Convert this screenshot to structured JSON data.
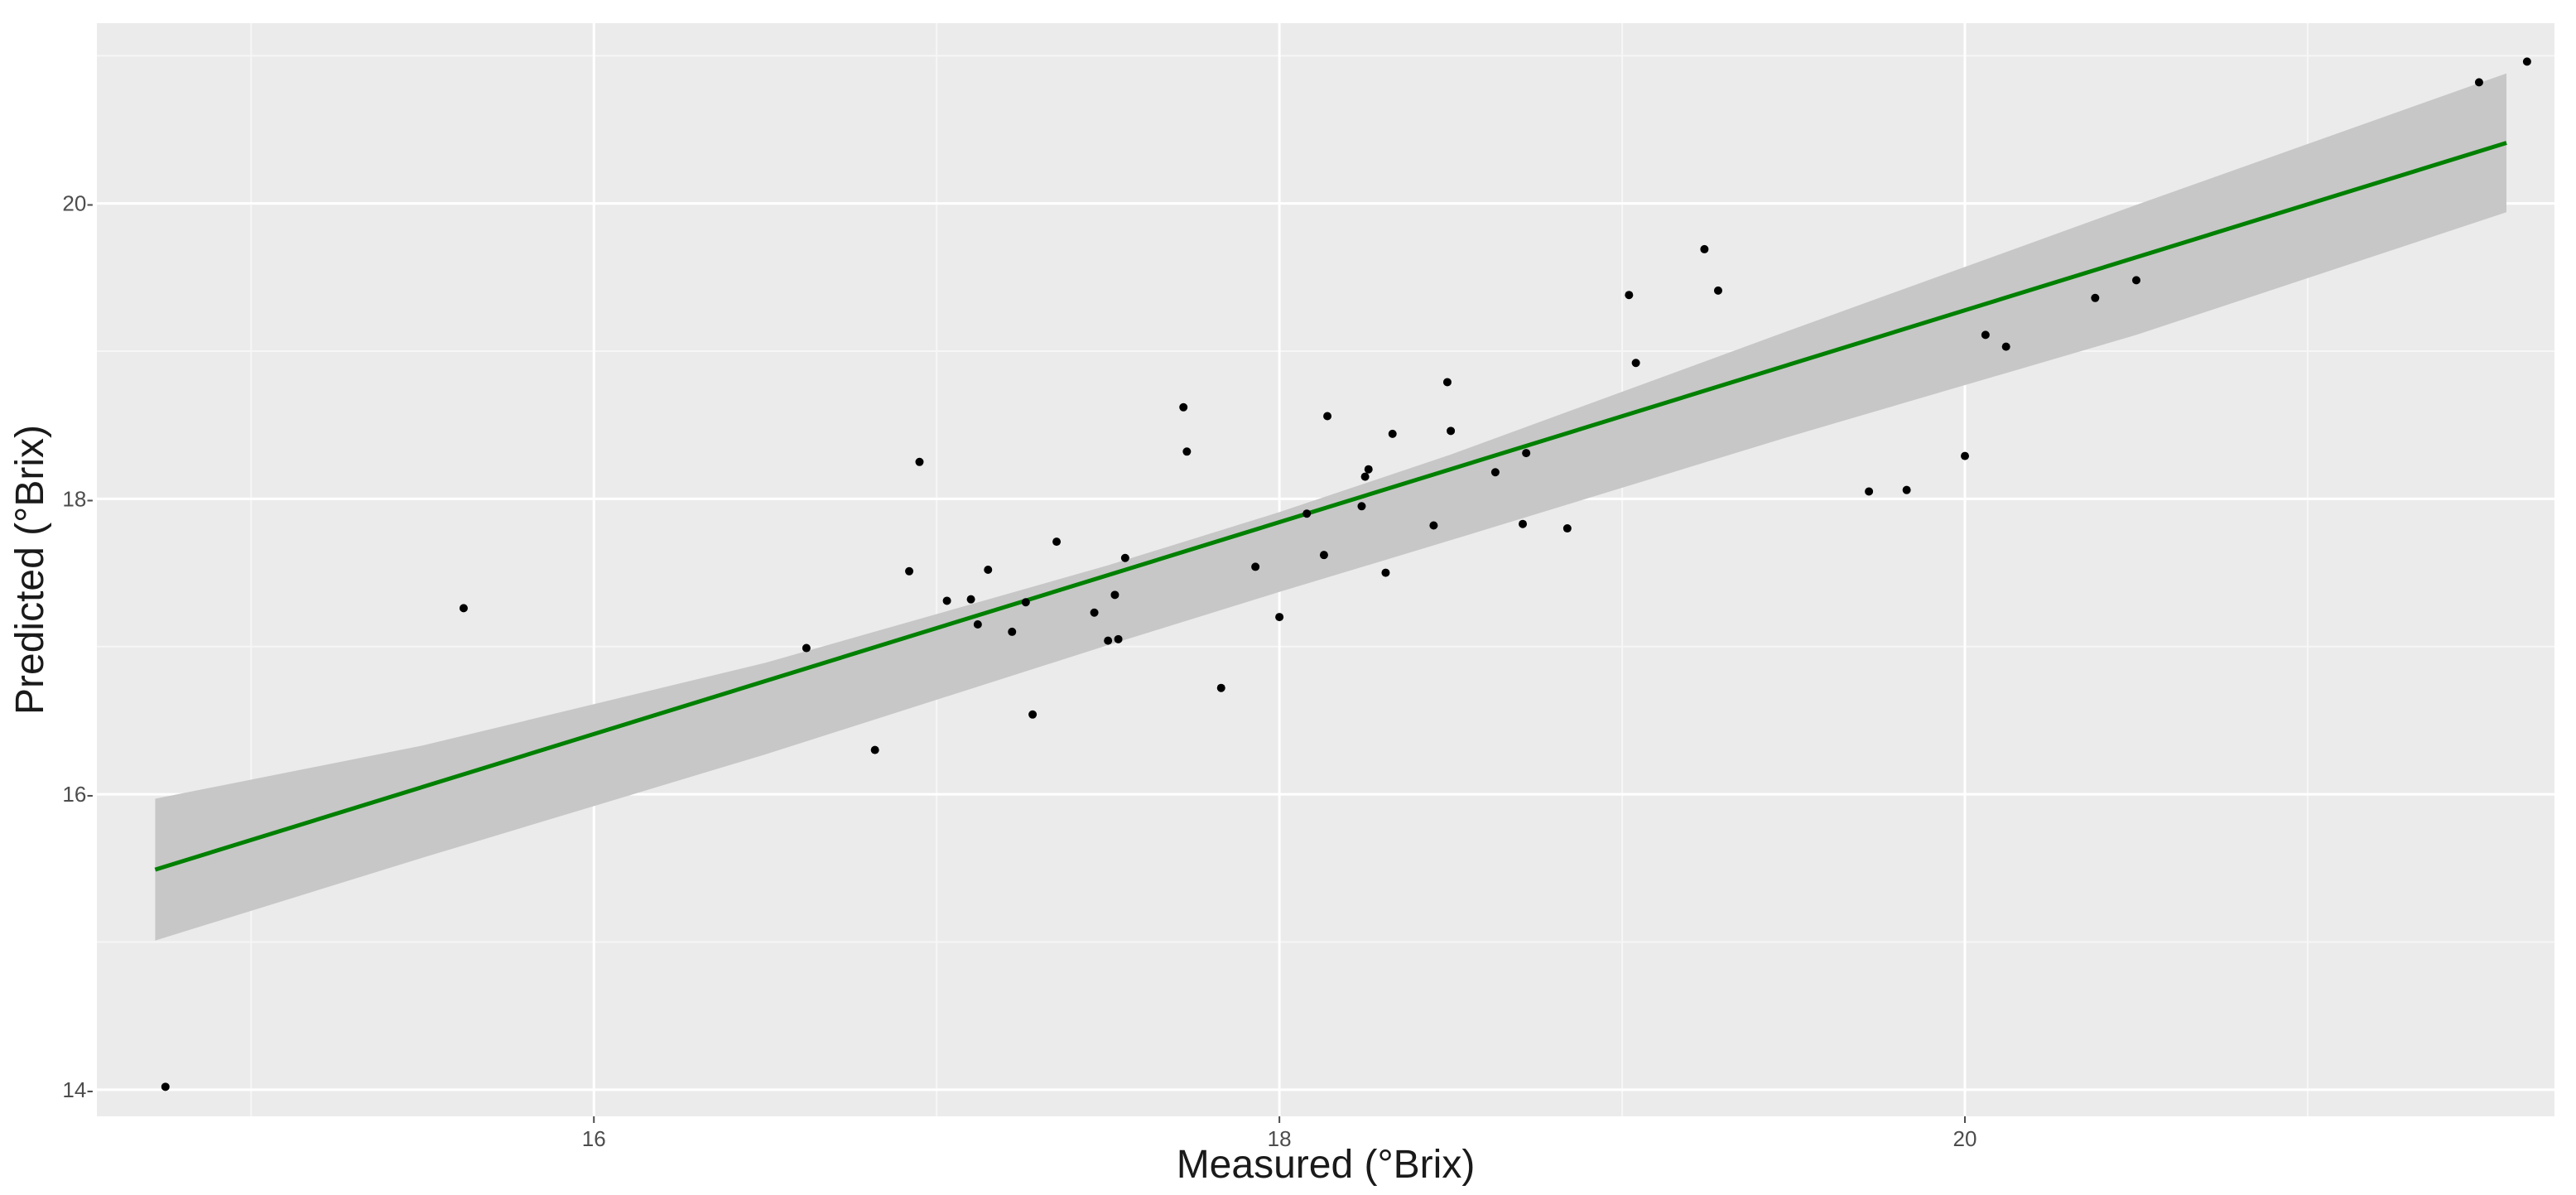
{
  "chart_data": {
    "type": "scatter",
    "title": "",
    "xlabel": "Measured (°Brix)",
    "ylabel": "Predicted (°Brix)",
    "xlim": [
      14.55,
      21.72
    ],
    "ylim": [
      13.82,
      21.22
    ],
    "x_ticks": [
      16,
      18,
      20
    ],
    "y_ticks": [
      14,
      16,
      18,
      20
    ],
    "x_tick_labels": [
      "16",
      "18",
      "20"
    ],
    "y_tick_labels": [
      "14-",
      "16-",
      "18-",
      "20-"
    ],
    "grid": true,
    "legend": "none",
    "points": [
      {
        "x": 14.75,
        "y": 14.02
      },
      {
        "x": 15.62,
        "y": 17.26
      },
      {
        "x": 16.62,
        "y": 16.99
      },
      {
        "x": 16.82,
        "y": 16.3
      },
      {
        "x": 16.92,
        "y": 17.51
      },
      {
        "x": 16.95,
        "y": 18.25
      },
      {
        "x": 17.03,
        "y": 17.31
      },
      {
        "x": 17.1,
        "y": 17.32
      },
      {
        "x": 17.12,
        "y": 17.15
      },
      {
        "x": 17.15,
        "y": 17.52
      },
      {
        "x": 17.22,
        "y": 17.1
      },
      {
        "x": 17.26,
        "y": 17.3
      },
      {
        "x": 17.28,
        "y": 16.54
      },
      {
        "x": 17.35,
        "y": 17.71
      },
      {
        "x": 17.46,
        "y": 17.23
      },
      {
        "x": 17.5,
        "y": 17.04
      },
      {
        "x": 17.52,
        "y": 17.35
      },
      {
        "x": 17.53,
        "y": 17.05
      },
      {
        "x": 17.55,
        "y": 17.6
      },
      {
        "x": 17.72,
        "y": 18.62
      },
      {
        "x": 17.73,
        "y": 18.32
      },
      {
        "x": 17.83,
        "y": 16.72
      },
      {
        "x": 17.93,
        "y": 17.54
      },
      {
        "x": 18.0,
        "y": 17.2
      },
      {
        "x": 18.08,
        "y": 17.9
      },
      {
        "x": 18.13,
        "y": 17.62
      },
      {
        "x": 18.14,
        "y": 18.56
      },
      {
        "x": 18.24,
        "y": 17.95
      },
      {
        "x": 18.25,
        "y": 18.15
      },
      {
        "x": 18.26,
        "y": 18.2
      },
      {
        "x": 18.31,
        "y": 17.5
      },
      {
        "x": 18.33,
        "y": 18.44
      },
      {
        "x": 18.45,
        "y": 17.82
      },
      {
        "x": 18.49,
        "y": 18.79
      },
      {
        "x": 18.5,
        "y": 18.46
      },
      {
        "x": 18.63,
        "y": 18.18
      },
      {
        "x": 18.71,
        "y": 17.83
      },
      {
        "x": 18.72,
        "y": 18.31
      },
      {
        "x": 18.84,
        "y": 17.8
      },
      {
        "x": 19.02,
        "y": 19.38
      },
      {
        "x": 19.04,
        "y": 18.92
      },
      {
        "x": 19.24,
        "y": 19.69
      },
      {
        "x": 19.28,
        "y": 19.41
      },
      {
        "x": 19.72,
        "y": 18.05
      },
      {
        "x": 19.83,
        "y": 18.06
      },
      {
        "x": 20.0,
        "y": 18.29
      },
      {
        "x": 20.06,
        "y": 19.11
      },
      {
        "x": 20.12,
        "y": 19.03
      },
      {
        "x": 20.38,
        "y": 19.36
      },
      {
        "x": 20.5,
        "y": 19.48
      },
      {
        "x": 21.5,
        "y": 20.82
      },
      {
        "x": 21.64,
        "y": 20.96
      }
    ],
    "fit_line": {
      "color": "#008000",
      "x": [
        14.72,
        21.58
      ],
      "y": [
        15.49,
        20.41
      ]
    },
    "confidence_band": {
      "color": "#c7c7c7",
      "x": [
        14.72,
        15.5,
        16.5,
        17.5,
        18.0,
        18.5,
        19.5,
        20.5,
        21.58
      ],
      "upper": [
        15.97,
        16.33,
        16.89,
        17.55,
        17.91,
        18.3,
        19.15,
        19.99,
        20.88
      ],
      "lower": [
        15.01,
        15.57,
        16.27,
        17.01,
        17.37,
        17.72,
        18.43,
        19.11,
        19.94
      ]
    },
    "point_color": "#000000",
    "panel_background": "#ebebeb"
  }
}
